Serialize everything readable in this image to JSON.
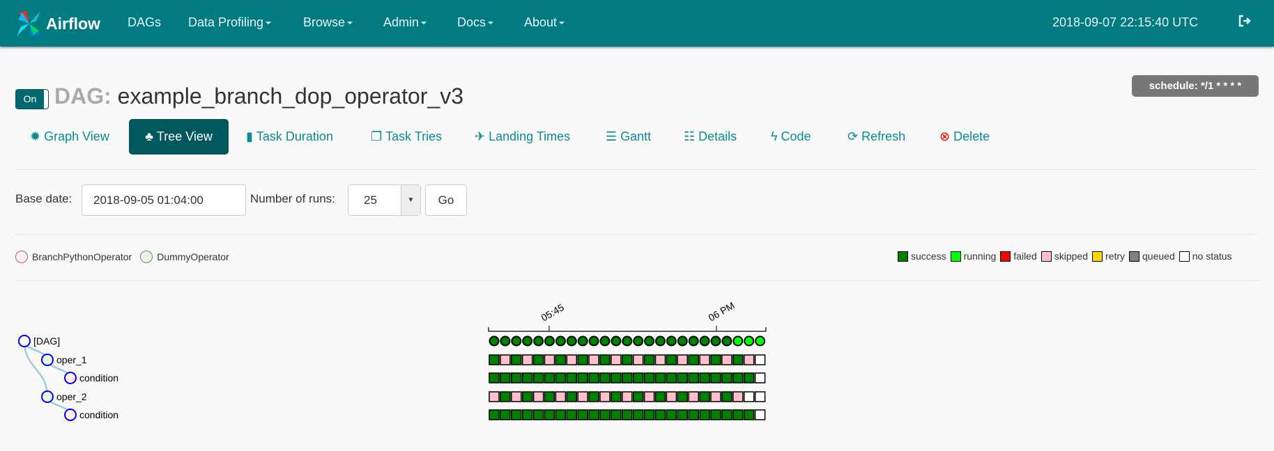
{
  "navbar": {
    "brand": "Airflow",
    "items": [
      {
        "label": "DAGs",
        "dropdown": false
      },
      {
        "label": "Data Profiling",
        "dropdown": true
      },
      {
        "label": "Browse",
        "dropdown": true
      },
      {
        "label": "Admin",
        "dropdown": true
      },
      {
        "label": "Docs",
        "dropdown": true
      },
      {
        "label": "About",
        "dropdown": true
      }
    ],
    "clock": "2018-09-07 22:15:40 UTC",
    "logout_icon": "sign-out-icon",
    "color": "#017a82"
  },
  "header": {
    "toggle": "On",
    "dag_prefix": "DAG:",
    "dag_id": "example_branch_dop_operator_v3",
    "schedule": "schedule: */1 * * * *"
  },
  "tabs": [
    {
      "label": "Graph View",
      "icon": "certificate-icon"
    },
    {
      "label": "Tree View",
      "icon": "tree-icon",
      "active": true
    },
    {
      "label": "Task Duration",
      "icon": "bar-chart-icon"
    },
    {
      "label": "Task Tries",
      "icon": "duplicate-icon"
    },
    {
      "label": "Landing Times",
      "icon": "plane-icon"
    },
    {
      "label": "Gantt",
      "icon": "align-left-icon"
    },
    {
      "label": "Details",
      "icon": "list-icon"
    },
    {
      "label": "Code",
      "icon": "flash-icon"
    },
    {
      "label": "Refresh",
      "icon": "refresh-icon"
    },
    {
      "label": "Delete",
      "icon": "remove-circle-icon"
    }
  ],
  "form": {
    "base_date_label": "Base date:",
    "base_date": "2018-09-05 01:04:00",
    "runs_label": "Number of runs:",
    "runs": "25",
    "go": "Go"
  },
  "operators": [
    {
      "name": "BranchPythonOperator",
      "color": "#ffefeb"
    },
    {
      "name": "DummyOperator",
      "color": "#e8f7e4"
    }
  ],
  "legend": [
    {
      "label": "success",
      "color": "#008000"
    },
    {
      "label": "running",
      "color": "#00ff00"
    },
    {
      "label": "failed",
      "color": "#ff0000"
    },
    {
      "label": "skipped",
      "color": "#ffc0cb"
    },
    {
      "label": "retry",
      "color": "#ffd700"
    },
    {
      "label": "queued",
      "color": "#808080"
    },
    {
      "label": "no status",
      "color": "#ffffff"
    }
  ],
  "tree": {
    "axis_ticks": [
      "05:45",
      "06 PM"
    ],
    "nodes": [
      {
        "label": "[DAG]",
        "depth": 0,
        "operator": null
      },
      {
        "label": "oper_1",
        "depth": 1,
        "operator": "DummyOperator"
      },
      {
        "label": "condition",
        "depth": 2,
        "operator": "BranchPythonOperator"
      },
      {
        "label": "oper_2",
        "depth": 1,
        "operator": "DummyOperator"
      },
      {
        "label": "condition",
        "depth": 2,
        "operator": "BranchPythonOperator"
      }
    ],
    "runs": [
      "SSSSSSSSSSSSSSSSSSSSSSRRR",
      "SKSKSKSKSKSKSKSKSKSKSKSKN",
      "SSSSSSSSSSSSSSSSSSSSSSSSN",
      "KSKSKSKSKSKSKSKSKSKSKSKNN",
      "SSSSSSSSSSSSSSSSSSSSSSSSN"
    ],
    "state_codes": {
      "S": "success",
      "R": "running",
      "K": "skipped",
      "N": "no status"
    }
  }
}
